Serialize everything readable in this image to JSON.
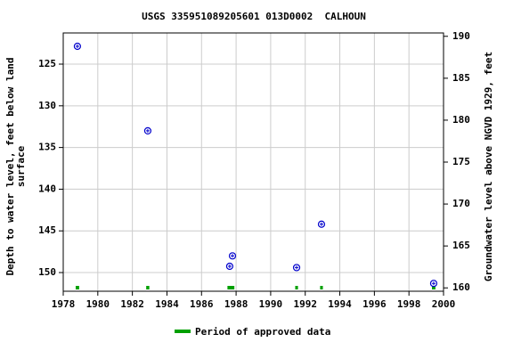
{
  "chart_data": {
    "type": "scatter",
    "title": "USGS 335951089205601 013D0002  CALHOUN",
    "ylabel": [
      "Depth to water level, feet below land",
      "surface"
    ],
    "y2label": "Groundwater level above NGVD 1929, feet",
    "x": [
      1978.82,
      1982.89,
      1987.63,
      1987.79,
      1991.5,
      1992.94,
      1999.43
    ],
    "series": [
      {
        "color": "#0000cc",
        "values": [
          122.86,
          133.0,
          149.25,
          148.0,
          149.4,
          144.2,
          151.3
        ]
      }
    ],
    "approved_periods": {
      "label": "Period of approved data",
      "color": "#00a000",
      "start": [
        1978.72,
        1982.8,
        1987.5,
        1991.42,
        1992.86,
        1999.33
      ],
      "end": [
        1978.92,
        1982.98,
        1987.9,
        1991.58,
        1993.02,
        1999.53
      ]
    },
    "xlim": [
      1978,
      2000
    ],
    "xticks": [
      1978,
      1980,
      1982,
      1984,
      1986,
      1988,
      1990,
      1992,
      1994,
      1996,
      1998,
      2000
    ],
    "ylim": [
      152.24,
      121.26
    ],
    "yticks": [
      125,
      130,
      135,
      140,
      145,
      150
    ],
    "y2lim": [
      159.6,
      190.4
    ],
    "y2ticks": [
      160,
      165,
      170,
      175,
      180,
      185,
      190
    ],
    "grid": true
  }
}
